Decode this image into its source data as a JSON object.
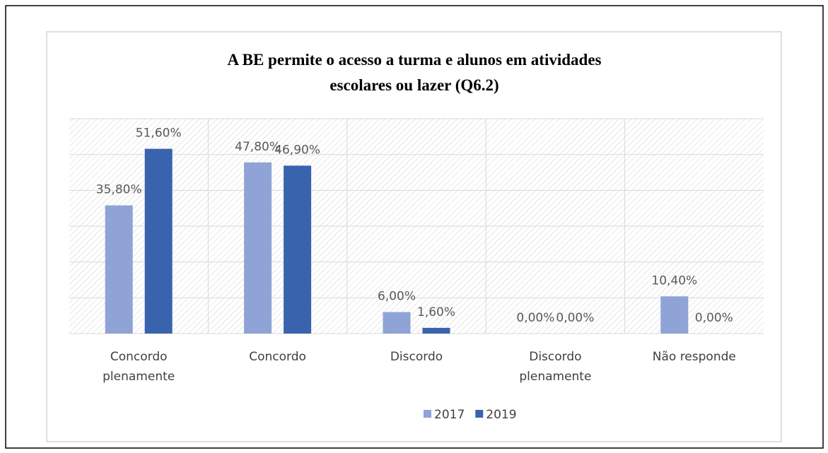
{
  "chart_data": {
    "type": "bar",
    "title": "A BE permite o acesso a turma e alunos em atividades\nescolares ou lazer (Q6.2)",
    "categories": [
      "Concordo\nplenamente",
      "Concordo",
      "Discordo",
      "Discordo\nplenamente",
      "Não responde"
    ],
    "series": [
      {
        "name": "2017",
        "color": "#8fa3d6",
        "values": [
          35.8,
          47.8,
          6.0,
          0.0,
          10.4
        ],
        "value_labels": [
          "35,80%",
          "47,80%",
          "6,00%",
          "0,00%",
          "10,40%"
        ]
      },
      {
        "name": "2019",
        "color": "#3a63ad",
        "values": [
          51.6,
          46.9,
          1.6,
          0.0,
          0.0
        ],
        "value_labels": [
          "51,60%",
          "46,90%",
          "1,60%",
          "0,00%",
          "0,00%"
        ]
      }
    ],
    "ylim": [
      0,
      60
    ],
    "yticks": [
      0,
      10,
      20,
      30,
      40,
      50,
      60
    ],
    "grid": true,
    "legend": "bottom"
  }
}
